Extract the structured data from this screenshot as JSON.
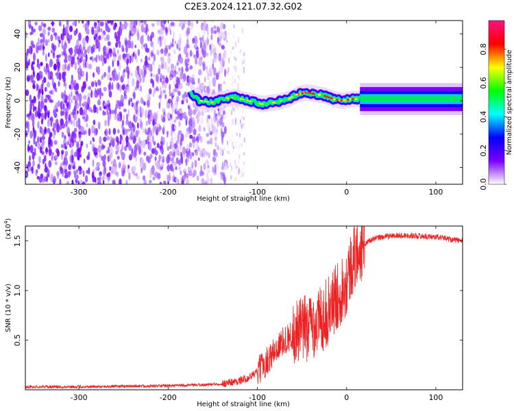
{
  "title": "C2E3.2024.121.07.32.G02",
  "chart_data": [
    {
      "type": "heatmap",
      "xlabel": "Height of straight line (km)",
      "ylabel": "Frequency (Hz)",
      "xlim": [
        -360,
        130
      ],
      "ylim": [
        -50,
        48
      ],
      "xticks": [
        -300,
        -200,
        -100,
        0,
        100
      ],
      "yticks": [
        -40,
        -20,
        0,
        20,
        40
      ],
      "colorbar": {
        "label": "Normalized spectral amplitude",
        "range": [
          0,
          0.97
        ],
        "ticks": [
          "0.0",
          "0.2",
          "0.4",
          "0.6",
          "0.8"
        ],
        "colors": [
          "#ffffff",
          "#7a00ff",
          "#0000ff",
          "#00ffff",
          "#00ff00",
          "#ffff00",
          "#ff0000",
          "#ff1080"
        ]
      },
      "noise_region": {
        "x_from": -360,
        "x_to": -135,
        "density": "high"
      },
      "sparse_region": {
        "x_from": -135,
        "x_to": -115
      },
      "signal_track": [
        {
          "x": -175,
          "y": 5
        },
        {
          "x": -165,
          "y": 0
        },
        {
          "x": -150,
          "y": -1
        },
        {
          "x": -140,
          "y": 1
        },
        {
          "x": -125,
          "y": 2
        },
        {
          "x": -110,
          "y": 0
        },
        {
          "x": -95,
          "y": -2
        },
        {
          "x": -80,
          "y": -1
        },
        {
          "x": -65,
          "y": 1
        },
        {
          "x": -55,
          "y": 4
        },
        {
          "x": -45,
          "y": 5
        },
        {
          "x": -35,
          "y": 4
        },
        {
          "x": -25,
          "y": 3
        },
        {
          "x": -15,
          "y": 1
        },
        {
          "x": -5,
          "y": 0
        },
        {
          "x": 5,
          "y": 1
        },
        {
          "x": 15,
          "y": 1
        },
        {
          "x": 130,
          "y": 1
        }
      ],
      "steady_band": {
        "x_from": 15,
        "x_to": 130,
        "y": 1,
        "halfwidth": 3
      }
    },
    {
      "type": "line",
      "xlabel": "Height of straight line (km)",
      "ylabel": "SNR (10 * v/v)",
      "y_multiplier": "(x10",
      "y_multiplier_exp": "4",
      "y_multiplier_close": ")",
      "xlim": [
        -360,
        130
      ],
      "ylim": [
        0,
        16500
      ],
      "xticks": [
        -300,
        -200,
        -100,
        0,
        100
      ],
      "yticks": [
        {
          "value": 5000,
          "label": "0.5"
        },
        {
          "value": 10000,
          "label": "1.0"
        },
        {
          "value": 15000,
          "label": "1.5"
        }
      ],
      "color": "#ee2222",
      "series": [
        {
          "x": [
            -360,
            -300,
            -250,
            -200,
            -160,
            -140,
            -120,
            -110,
            -100,
            -90,
            -80,
            -70,
            -60,
            -50,
            -40,
            -30,
            -20,
            -10,
            0,
            5,
            10,
            15,
            20,
            25,
            30,
            40,
            50,
            60,
            70,
            80,
            90,
            100,
            110,
            120,
            130
          ],
          "y": [
            300,
            300,
            350,
            400,
            500,
            600,
            900,
            1200,
            1800,
            2800,
            4000,
            5000,
            5500,
            6000,
            6500,
            7000,
            8000,
            9500,
            11000,
            12500,
            13500,
            14200,
            14700,
            15000,
            15200,
            15400,
            15500,
            15550,
            15550,
            15500,
            15450,
            15400,
            15300,
            15100,
            15000
          ]
        }
      ],
      "noise_amp": [
        {
          "x_from": -360,
          "x_to": -140,
          "amp": 150
        },
        {
          "x_from": -140,
          "x_to": -100,
          "amp": 400
        },
        {
          "x_from": -100,
          "x_to": -60,
          "amp": 1500
        },
        {
          "x_from": -60,
          "x_to": 20,
          "amp": 3500
        },
        {
          "x_from": 20,
          "x_to": 130,
          "amp": 300
        }
      ]
    }
  ]
}
